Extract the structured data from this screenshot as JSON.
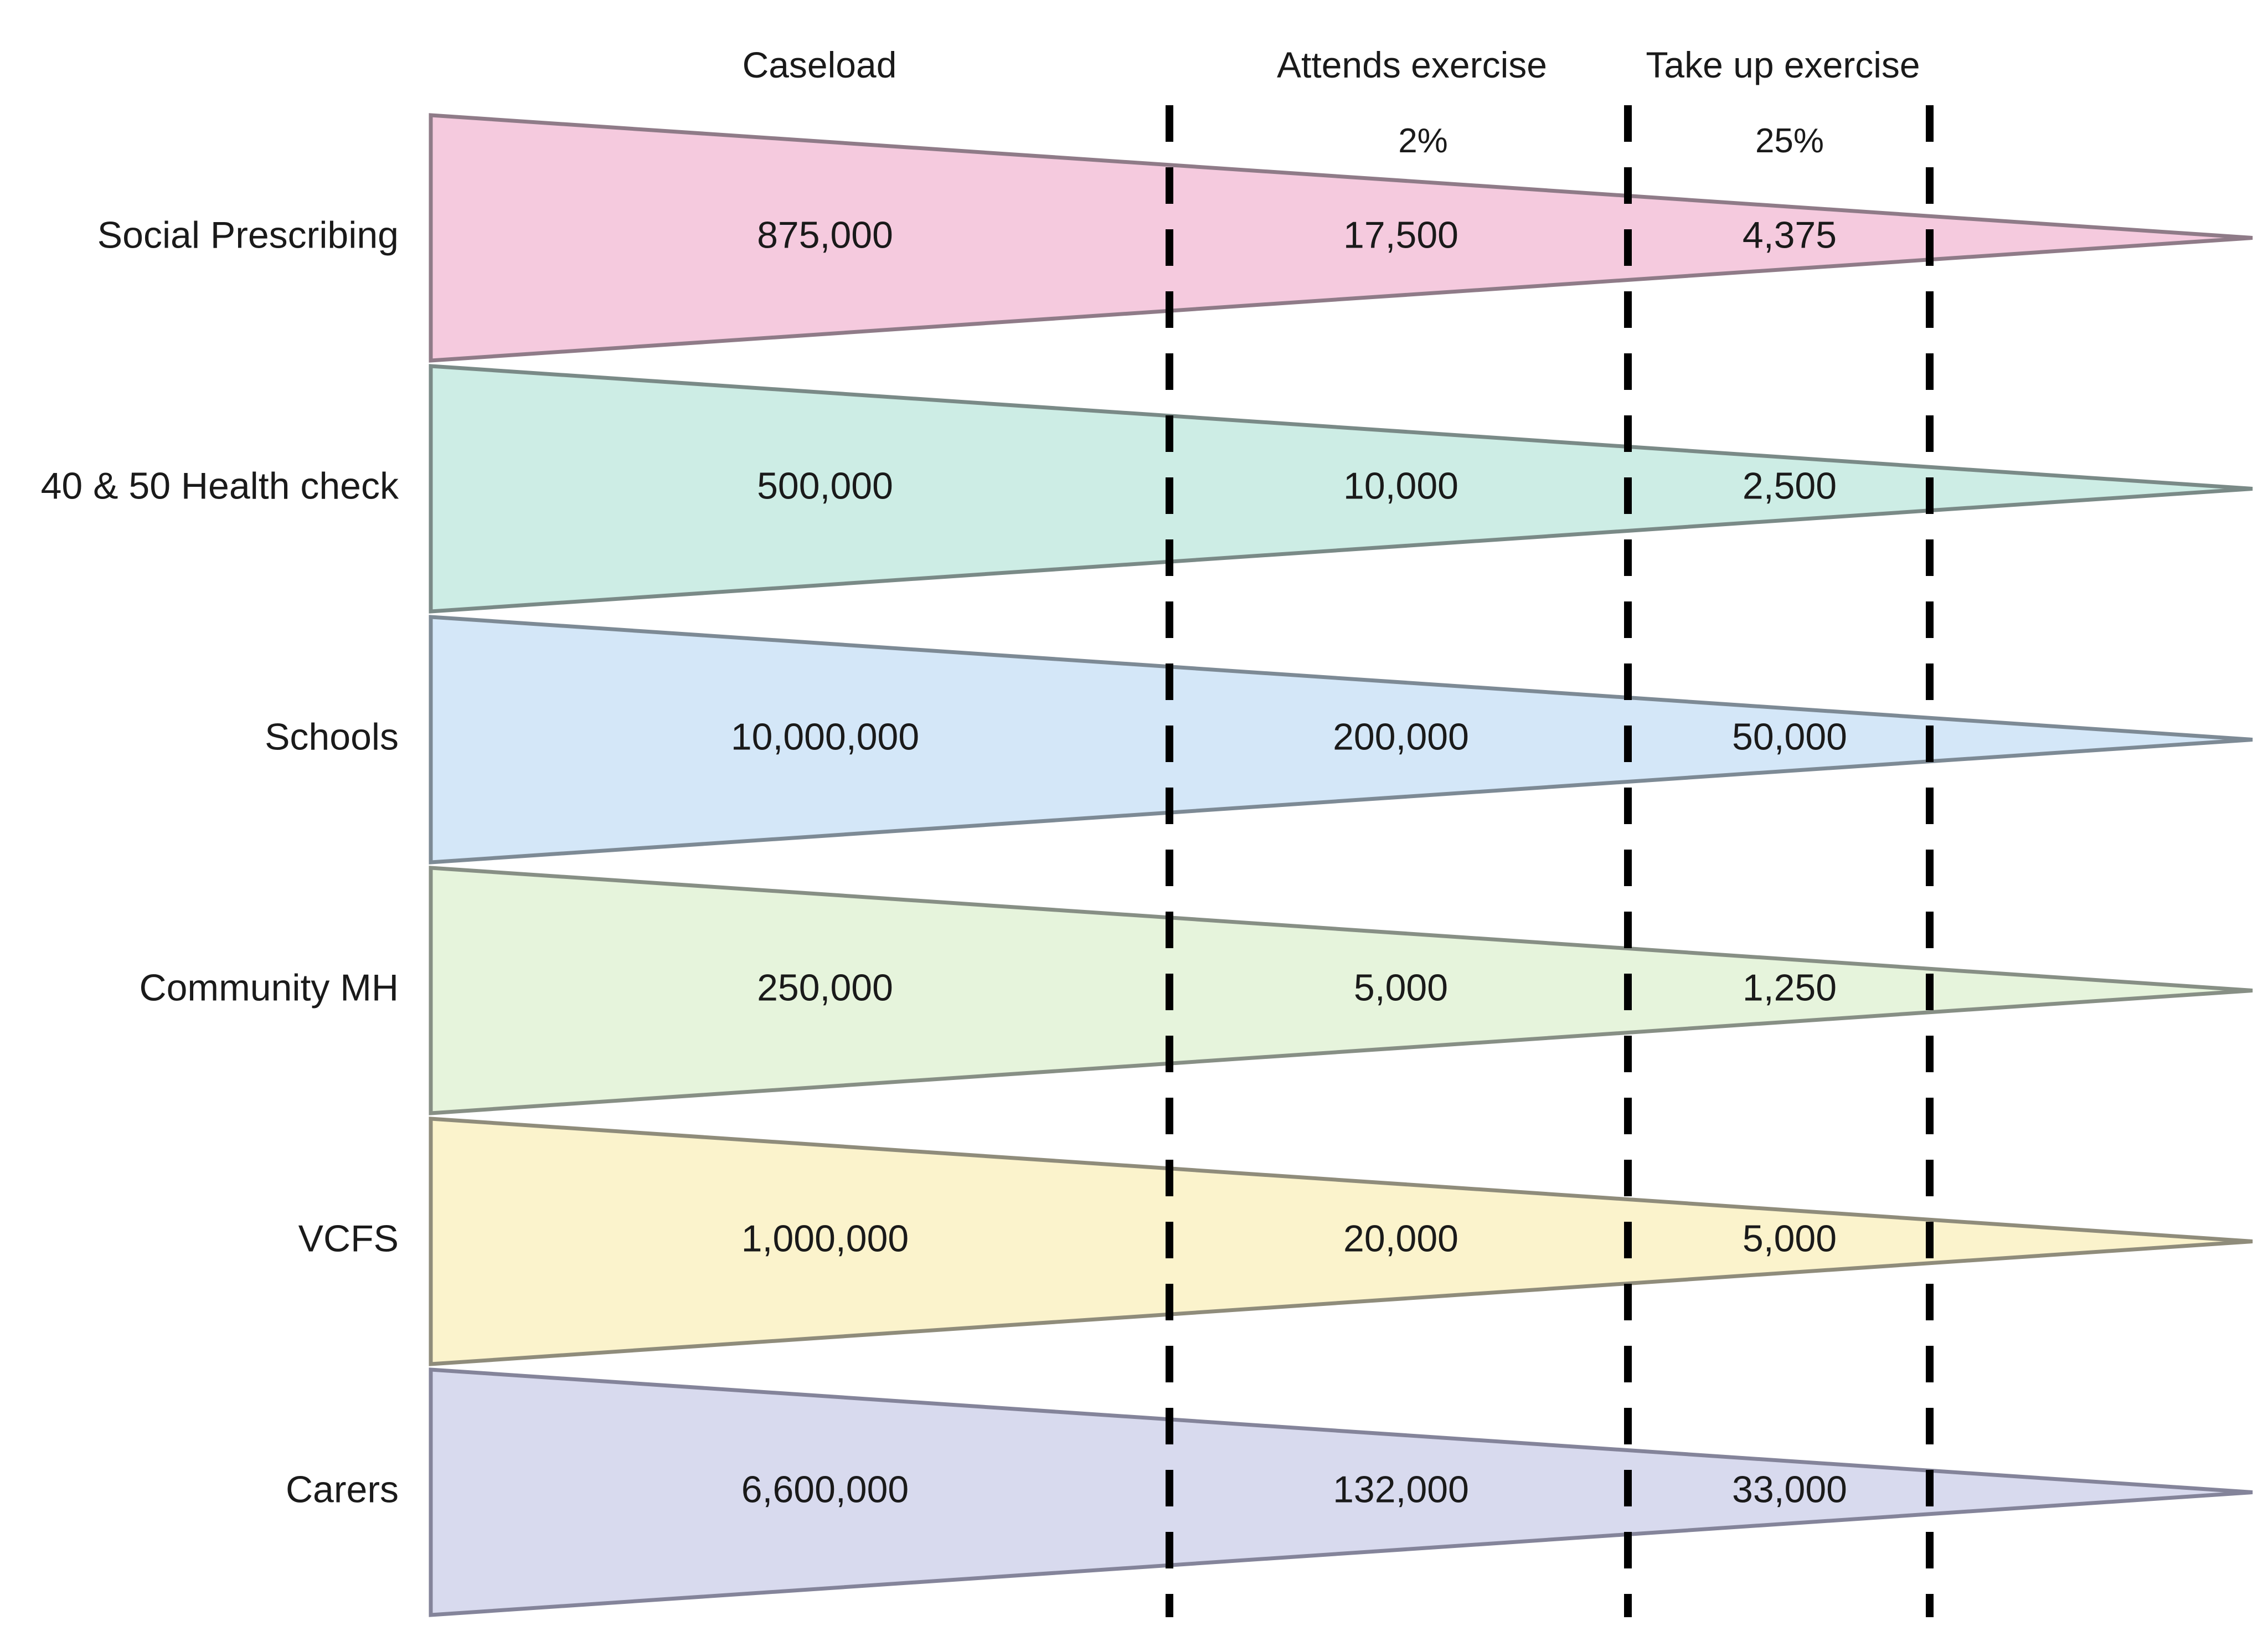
{
  "columns": {
    "caseload": "Caseload",
    "attends": "Attends exercise",
    "take_up": "Take up exercise"
  },
  "rates": {
    "attends": "2%",
    "take_up": "25%"
  },
  "rows": [
    {
      "label": "Social Prescribing",
      "caseload": "875,000",
      "attends": "17,500",
      "take_up": "4,375",
      "fill": "#f5cade",
      "stroke": "#8f7b88"
    },
    {
      "label": "40 & 50 Health check",
      "caseload": "500,000",
      "attends": "10,000",
      "take_up": "2,500",
      "fill": "#cdede5",
      "stroke": "#7a8a87"
    },
    {
      "label": "Schools",
      "caseload": "10,000,000",
      "attends": "200,000",
      "take_up": "50,000",
      "fill": "#d4e7f8",
      "stroke": "#7d8a95"
    },
    {
      "label": "Community MH",
      "caseload": "250,000",
      "attends": "5,000",
      "take_up": "1,250",
      "fill": "#e6f4dc",
      "stroke": "#878f85"
    },
    {
      "label": "VCFS",
      "caseload": "1,000,000",
      "attends": "20,000",
      "take_up": "5,000",
      "fill": "#fbf3cc",
      "stroke": "#8f8c7b"
    },
    {
      "label": "Carers",
      "caseload": "6,600,000",
      "attends": "132,000",
      "take_up": "33,000",
      "fill": "#d8daee",
      "stroke": "#84849a"
    }
  ]
}
